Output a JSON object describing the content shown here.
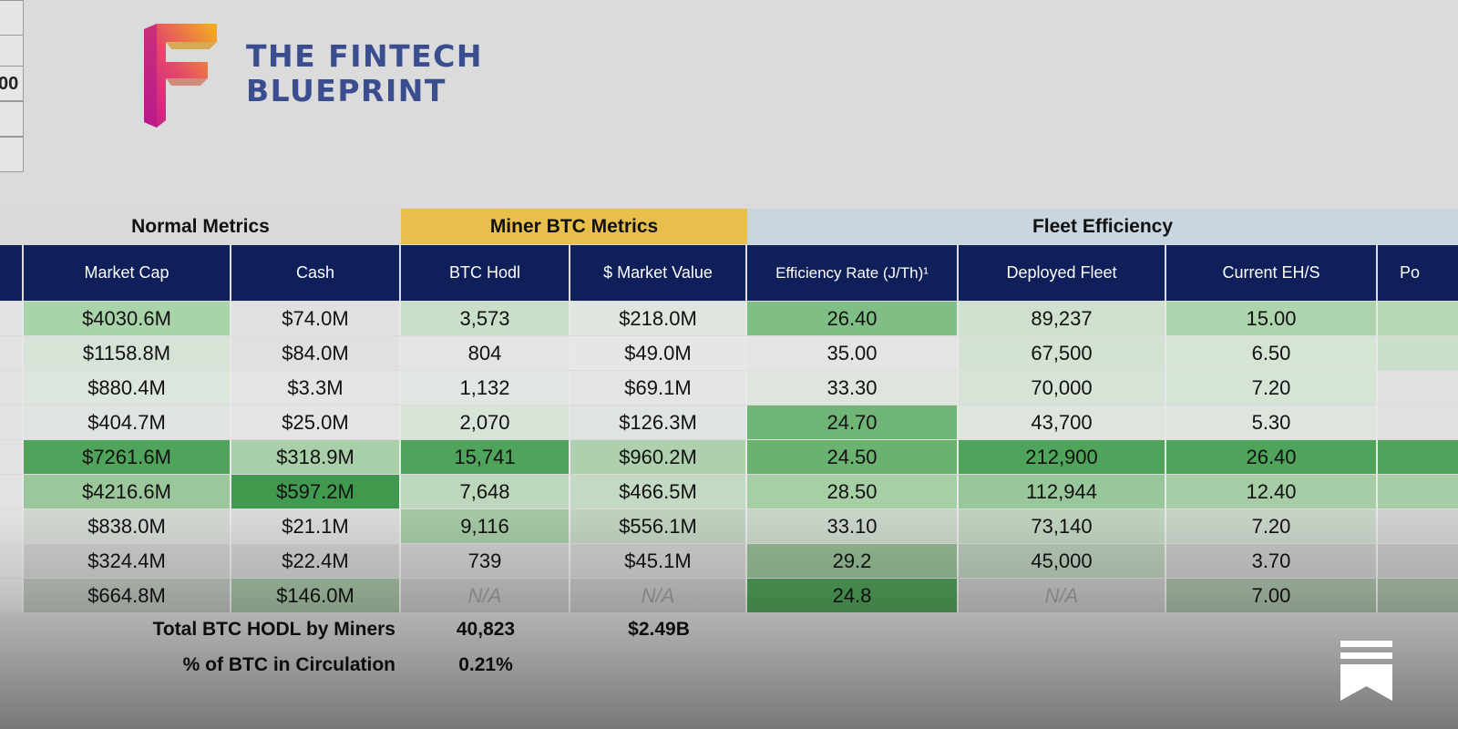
{
  "left_edge": {
    "cells": [
      "",
      "",
      "00",
      "",
      ""
    ]
  },
  "logo": {
    "line1": "THE FINTECH",
    "line2": "BLUEPRINT"
  },
  "sections": {
    "normal": "Normal Metrics",
    "miner": "Miner BTC Metrics",
    "fleet": "Fleet Efficiency"
  },
  "colors": {
    "header_navy": "#0e1f5a",
    "miner_section": "#e7bf4a",
    "fleet_section": "#c9d6e0",
    "normal_section": "#d9d9d9"
  },
  "headers": {
    "market_cap": "Market Cap",
    "cash": "Cash",
    "btc_hodl": "BTC Hodl",
    "market_value": "$ Market Value",
    "efficiency_rate": "Efficiency Rate (J/Th)¹",
    "deployed_fleet": "Deployed Fleet",
    "current_ehs": "Current EH/S",
    "partial": "Po"
  },
  "rows": [
    {
      "market_cap": "$4030.6M",
      "cash": "$74.0M",
      "btc_hodl": "3,573",
      "market_value": "$218.0M",
      "efficiency_rate": "26.40",
      "deployed_fleet": "89,237",
      "current_ehs": "15.00"
    },
    {
      "market_cap": "$1158.8M",
      "cash": "$84.0M",
      "btc_hodl": "804",
      "market_value": "$49.0M",
      "efficiency_rate": "35.00",
      "deployed_fleet": "67,500",
      "current_ehs": "6.50"
    },
    {
      "market_cap": "$880.4M",
      "cash": "$3.3M",
      "btc_hodl": "1,132",
      "market_value": "$69.1M",
      "efficiency_rate": "33.30",
      "deployed_fleet": "70,000",
      "current_ehs": "7.20"
    },
    {
      "market_cap": "$404.7M",
      "cash": "$25.0M",
      "btc_hodl": "2,070",
      "market_value": "$126.3M",
      "efficiency_rate": "24.70",
      "deployed_fleet": "43,700",
      "current_ehs": "5.30"
    },
    {
      "market_cap": "$7261.6M",
      "cash": "$318.9M",
      "btc_hodl": "15,741",
      "market_value": "$960.2M",
      "efficiency_rate": "24.50",
      "deployed_fleet": "212,900",
      "current_ehs": "26.40"
    },
    {
      "market_cap": "$4216.6M",
      "cash": "$597.2M",
      "btc_hodl": "7,648",
      "market_value": "$466.5M",
      "efficiency_rate": "28.50",
      "deployed_fleet": "112,944",
      "current_ehs": "12.40"
    },
    {
      "market_cap": "$838.0M",
      "cash": "$21.1M",
      "btc_hodl": "9,116",
      "market_value": "$556.1M",
      "efficiency_rate": "33.10",
      "deployed_fleet": "73,140",
      "current_ehs": "7.20"
    },
    {
      "market_cap": "$324.4M",
      "cash": "$22.4M",
      "btc_hodl": "739",
      "market_value": "$45.1M",
      "efficiency_rate": "29.2",
      "deployed_fleet": "45,000",
      "current_ehs": "3.70"
    },
    {
      "market_cap": "$664.8M",
      "cash": "$146.0M",
      "btc_hodl": "N/A",
      "market_value": "N/A",
      "efficiency_rate": "24.8",
      "deployed_fleet": "N/A",
      "current_ehs": "7.00"
    }
  ],
  "cell_colors": [
    {
      "market_cap": "#a9d3a9",
      "cash": "#e0e0e0",
      "btc_hodl": "#c9dfc9",
      "market_value": "#dfe6df",
      "efficiency_rate": "#7fbf85",
      "deployed_fleet": "#cfe0cf",
      "current_ehs": "#aed4ae",
      "partial": "#b6d7b6"
    },
    {
      "market_cap": "#d6e3d6",
      "cash": "#e0e0e0",
      "btc_hodl": "#e4e4e4",
      "market_value": "#e6e6e6",
      "efficiency_rate": "#e4e4e4",
      "deployed_fleet": "#d3e2d3",
      "current_ehs": "#d6e4d6",
      "partial": "#c9dfc9"
    },
    {
      "market_cap": "#dce6dc",
      "cash": "#e4e4e4",
      "btc_hodl": "#e2e6e2",
      "market_value": "#e4e4e4",
      "efficiency_rate": "#dde5dd",
      "deployed_fleet": "#d6e3d6",
      "current_ehs": "#d6e4d6",
      "partial": "#e0e0e0"
    },
    {
      "market_cap": "#e0e4e0",
      "cash": "#e4e4e4",
      "btc_hodl": "#d9e4d9",
      "market_value": "#e0e4e0",
      "efficiency_rate": "#6fb676",
      "deployed_fleet": "#dde5dd",
      "current_ehs": "#dee4de",
      "partial": "#e0e0e0"
    },
    {
      "market_cap": "#4fa35a",
      "cash": "#a9cfa9",
      "btc_hodl": "#4fa35a",
      "market_value": "#aed0ae",
      "efficiency_rate": "#6ab26f",
      "deployed_fleet": "#4fa35a",
      "current_ehs": "#4fa35a",
      "partial": "#4fa35a"
    },
    {
      "market_cap": "#9cc79c",
      "cash": "#3f9a4d",
      "btc_hodl": "#bcd7bc",
      "market_value": "#c3d9c3",
      "efficiency_rate": "#a6cfa6",
      "deployed_fleet": "#98c79b",
      "current_ehs": "#a7cda7",
      "partial": "#a7cda7"
    },
    {
      "market_cap": "#d2d7d2",
      "cash": "#d9d9d9",
      "btc_hodl": "#a3c7a3",
      "market_value": "#bfd1bf",
      "efficiency_rate": "#cad5ca",
      "deployed_fleet": "#bed2be",
      "current_ehs": "#c8d3c8",
      "partial": "#d0d0d0"
    },
    {
      "market_cap": "#cbcbcb",
      "cash": "#cccccc",
      "btc_hodl": "#cccccc",
      "market_value": "#cccccc",
      "efficiency_rate": "#91b891",
      "deployed_fleet": "#b6c7b6",
      "current_ehs": "#c5c5c5",
      "partial": "#c5c5c5"
    },
    {
      "market_cap": "#b9bfb9",
      "cash": "#9fbc9f",
      "btc_hodl": "#c2c2c2",
      "market_value": "#c2c2c2",
      "efficiency_rate": "#4e9a56",
      "deployed_fleet": "#c2c2c2",
      "current_ehs": "#a5b9a5",
      "partial": "#a5b9a5"
    }
  ],
  "totals": {
    "total_label": "Total BTC HODL by Miners",
    "total_btc": "40,823",
    "total_value": "$2.49B",
    "pct_label": "% of BTC in Circulation",
    "pct_value": "0.21%"
  },
  "bookmark_icon": "substack-bookmark-icon"
}
